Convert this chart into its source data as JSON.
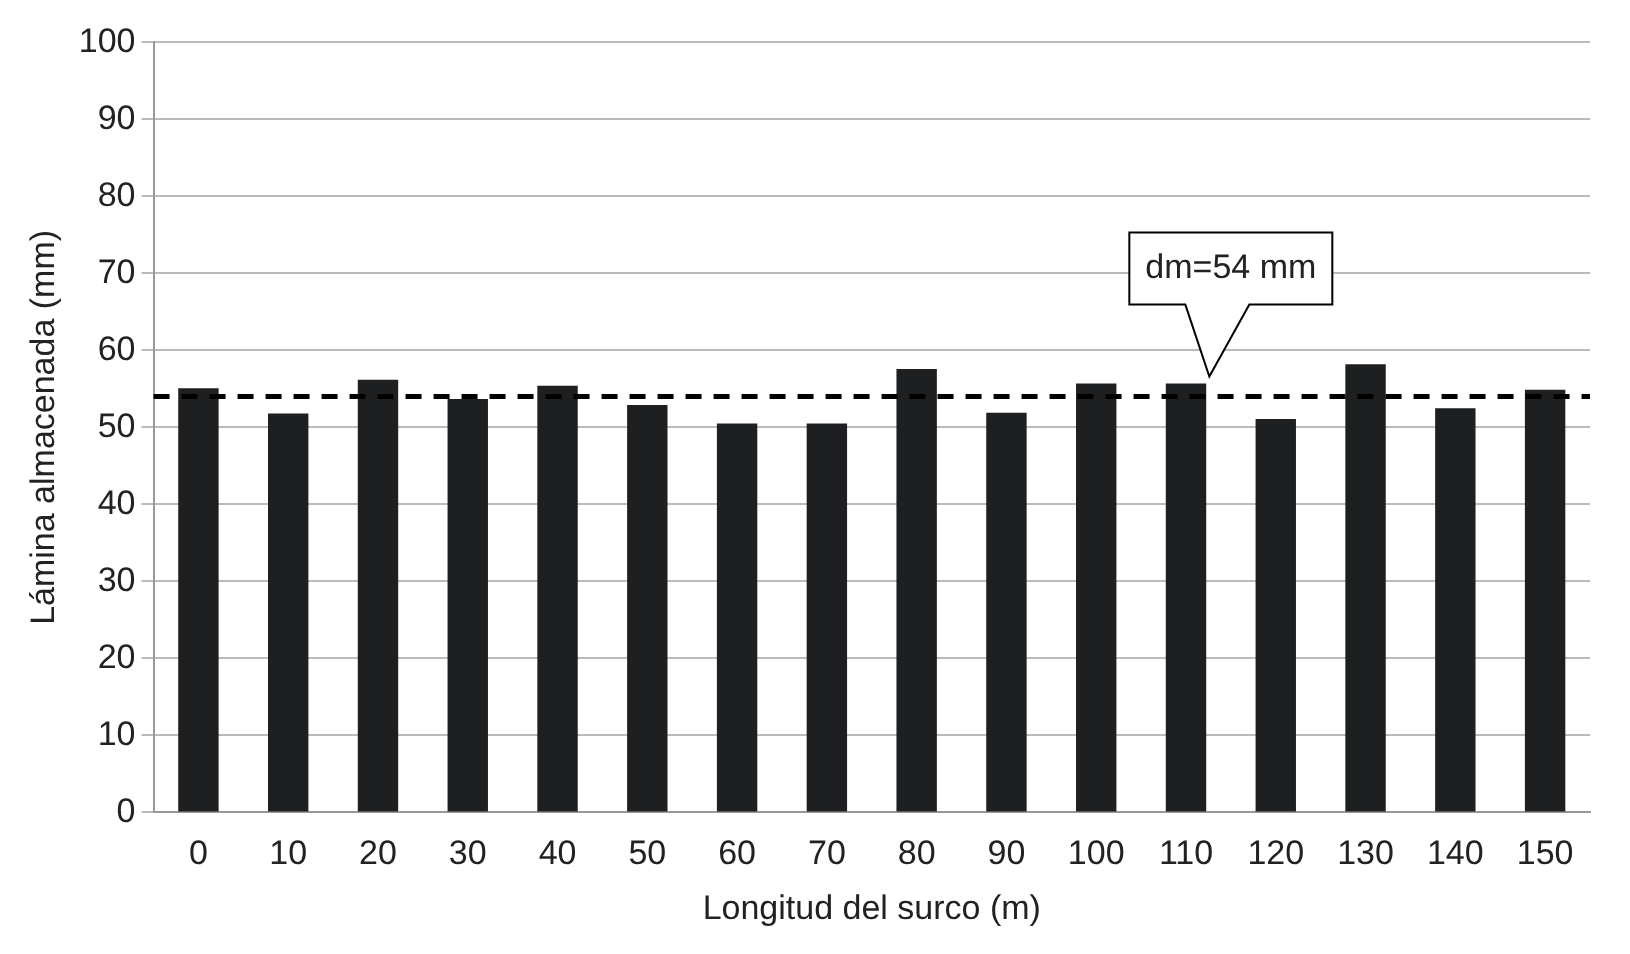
{
  "chart_data": {
    "type": "bar",
    "xlabel": "Longitud del surco (m)",
    "ylabel": "Lámina almacenada (mm)",
    "categories": [
      "0",
      "10",
      "20",
      "30",
      "40",
      "50",
      "60",
      "70",
      "80",
      "90",
      "100",
      "110",
      "120",
      "130",
      "140",
      "150"
    ],
    "values": [
      55.1,
      51.8,
      56.2,
      53.7,
      55.4,
      52.9,
      50.5,
      50.5,
      57.6,
      51.9,
      55.7,
      55.7,
      51.1,
      58.2,
      52.5,
      54.9
    ],
    "color": "#1e1f21",
    "ylim": [
      0,
      100
    ],
    "yticks": [
      0,
      10,
      20,
      30,
      40,
      50,
      60,
      70,
      80,
      90,
      100
    ],
    "grid": "y",
    "legend": false,
    "ref_lines": [
      {
        "axis": "y",
        "value": 54,
        "label": "dm=54 mm",
        "color": "#000000",
        "line_style": "dashed"
      }
    ]
  }
}
